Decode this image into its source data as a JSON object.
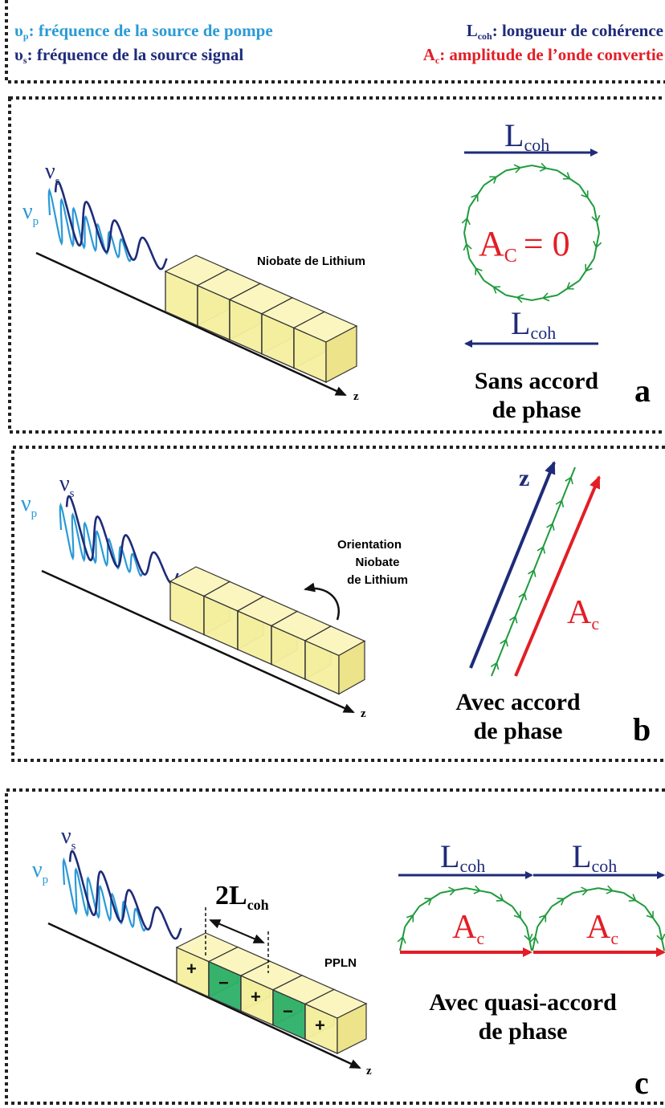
{
  "legend": {
    "pump": {
      "symbol": "υ",
      "sub": "p",
      "text": ": fréquence de la source de pompe"
    },
    "signal": {
      "symbol": "υ",
      "sub": "s",
      "text": ": fréquence de la source signal"
    },
    "lcoh": {
      "symbol": "L",
      "sub": "coh",
      "text": ": longueur de cohérence"
    },
    "ac": {
      "symbol": "A",
      "sub": "c",
      "text": ": amplitude de l’onde convertie"
    }
  },
  "colors": {
    "pump": "#2a9ad6",
    "signal": "#1e2b7a",
    "green": "#1e9a3c",
    "red": "#e21e26",
    "crystal_fill": "#f5f0a0",
    "crystal_green": "#2eb06a"
  },
  "wave_labels": {
    "nu": "ν",
    "s": "s",
    "p": "p"
  },
  "axis_label": "z",
  "panel_a": {
    "crystal_label": "Niobate de Lithium",
    "lcoh_main": "L",
    "lcoh_sub": "coh",
    "ac_main": "A",
    "ac_sub": "C",
    "ac_rest": "= 0",
    "caption_line1": "Sans accord",
    "caption_line2": "de phase",
    "letter": "a"
  },
  "panel_b": {
    "crystal_label_line1": "Orientation",
    "crystal_label_line2": "Niobate",
    "crystal_label_line3": "de Lithium",
    "z_label": "z",
    "ac_main": "A",
    "ac_sub": "c",
    "caption_line1": "Avec accord",
    "caption_line2": "de phase",
    "letter": "b"
  },
  "panel_c": {
    "two_lcoh_main": "2L",
    "two_lcoh_sub": "coh",
    "crystal_label": "PPLN",
    "signs": [
      "+",
      "−",
      "+",
      "−",
      "+"
    ],
    "lcoh_main": "L",
    "lcoh_sub": "coh",
    "ac_main": "A",
    "ac_sub": "c",
    "caption_line1": "Avec quasi-accord",
    "caption_line2": "de phase",
    "letter": "c"
  }
}
